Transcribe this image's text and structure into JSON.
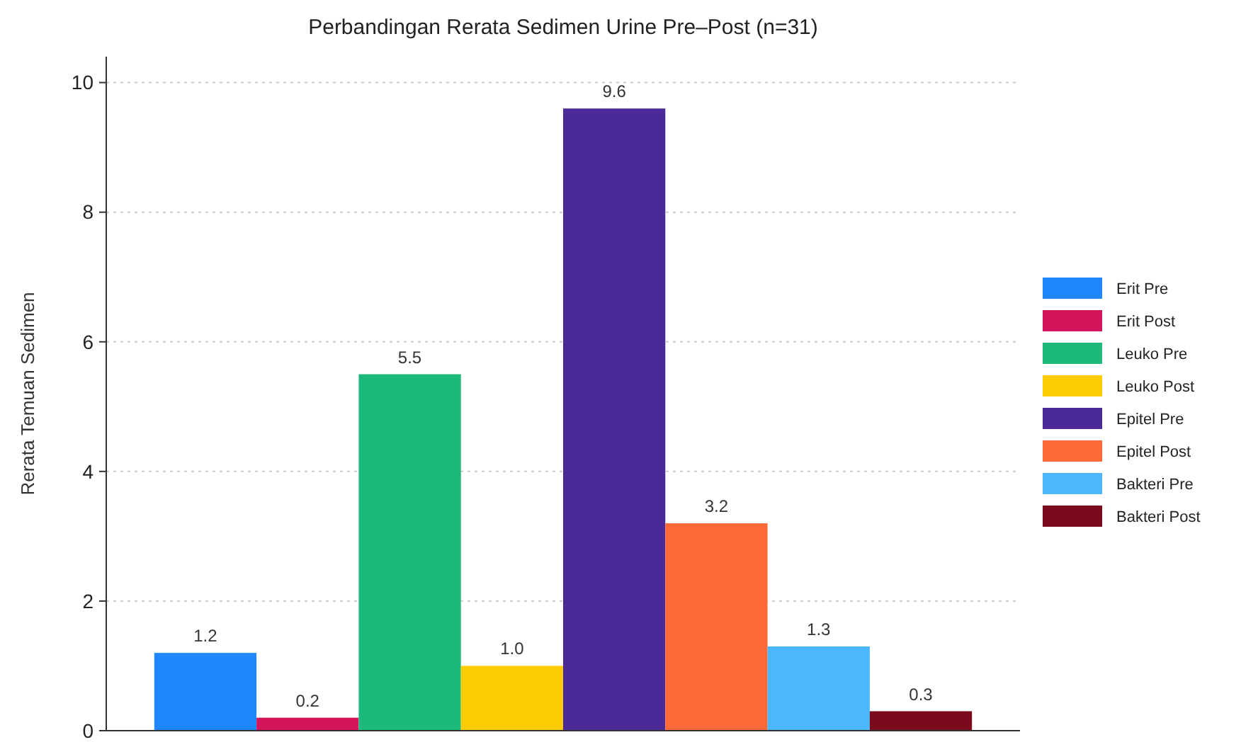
{
  "chart_data": {
    "type": "bar",
    "title": "Perbandingan Rerata Sedimen Urine Pre–Post (n=31)",
    "ylabel": "Rerata Temuan Sedimen",
    "categories": [
      null,
      null,
      null,
      null,
      null,
      null,
      null,
      null
    ],
    "series": [
      {
        "name": "Erit Pre",
        "color": "#1f87fb",
        "values": [
          1.2,
          null,
          null,
          null,
          null,
          null,
          null,
          null
        ],
        "value_labels": [
          "1.2",
          null,
          null,
          null,
          null,
          null,
          null,
          null
        ]
      },
      {
        "name": "Erit Post",
        "color": "#d3165c",
        "values": [
          null,
          0.2,
          null,
          null,
          null,
          null,
          null,
          null
        ],
        "value_labels": [
          null,
          "0.2",
          null,
          null,
          null,
          null,
          null,
          null
        ]
      },
      {
        "name": "Leuko Pre",
        "color": "#1db97a",
        "values": [
          null,
          null,
          5.5,
          null,
          null,
          null,
          null,
          null
        ],
        "value_labels": [
          null,
          null,
          "5.5",
          null,
          null,
          null,
          null,
          null
        ]
      },
      {
        "name": "Leuko Post",
        "color": "#fdcc05",
        "values": [
          null,
          null,
          null,
          1.0,
          null,
          null,
          null,
          null
        ],
        "value_labels": [
          null,
          null,
          null,
          "1.0",
          null,
          null,
          null,
          null
        ]
      },
      {
        "name": "Epitel Pre",
        "color": "#4b2a98",
        "values": [
          null,
          null,
          null,
          null,
          9.6,
          null,
          null,
          null
        ],
        "value_labels": [
          null,
          null,
          null,
          null,
          "9.6",
          null,
          null,
          null
        ]
      },
      {
        "name": "Epitel Post",
        "color": "#fd6a37",
        "values": [
          null,
          null,
          null,
          null,
          null,
          3.2,
          null,
          null
        ],
        "value_labels": [
          null,
          null,
          null,
          null,
          null,
          "3.2",
          null,
          null
        ]
      },
      {
        "name": "Bakteri Pre",
        "color": "#4cb7fd",
        "values": [
          null,
          null,
          null,
          null,
          null,
          null,
          1.3,
          null
        ],
        "value_labels": [
          null,
          null,
          null,
          null,
          null,
          null,
          "1.3",
          null
        ]
      },
      {
        "name": "Bakteri Post",
        "color": "#7b0a1c",
        "values": [
          null,
          null,
          null,
          null,
          null,
          null,
          null,
          0.3
        ],
        "value_labels": [
          null,
          null,
          null,
          null,
          null,
          null,
          null,
          "0.3"
        ]
      }
    ],
    "ylim": [
      0,
      10.4
    ],
    "yticks": [
      0,
      2,
      4,
      6,
      8,
      10
    ],
    "grid": "y",
    "legend": "right"
  }
}
